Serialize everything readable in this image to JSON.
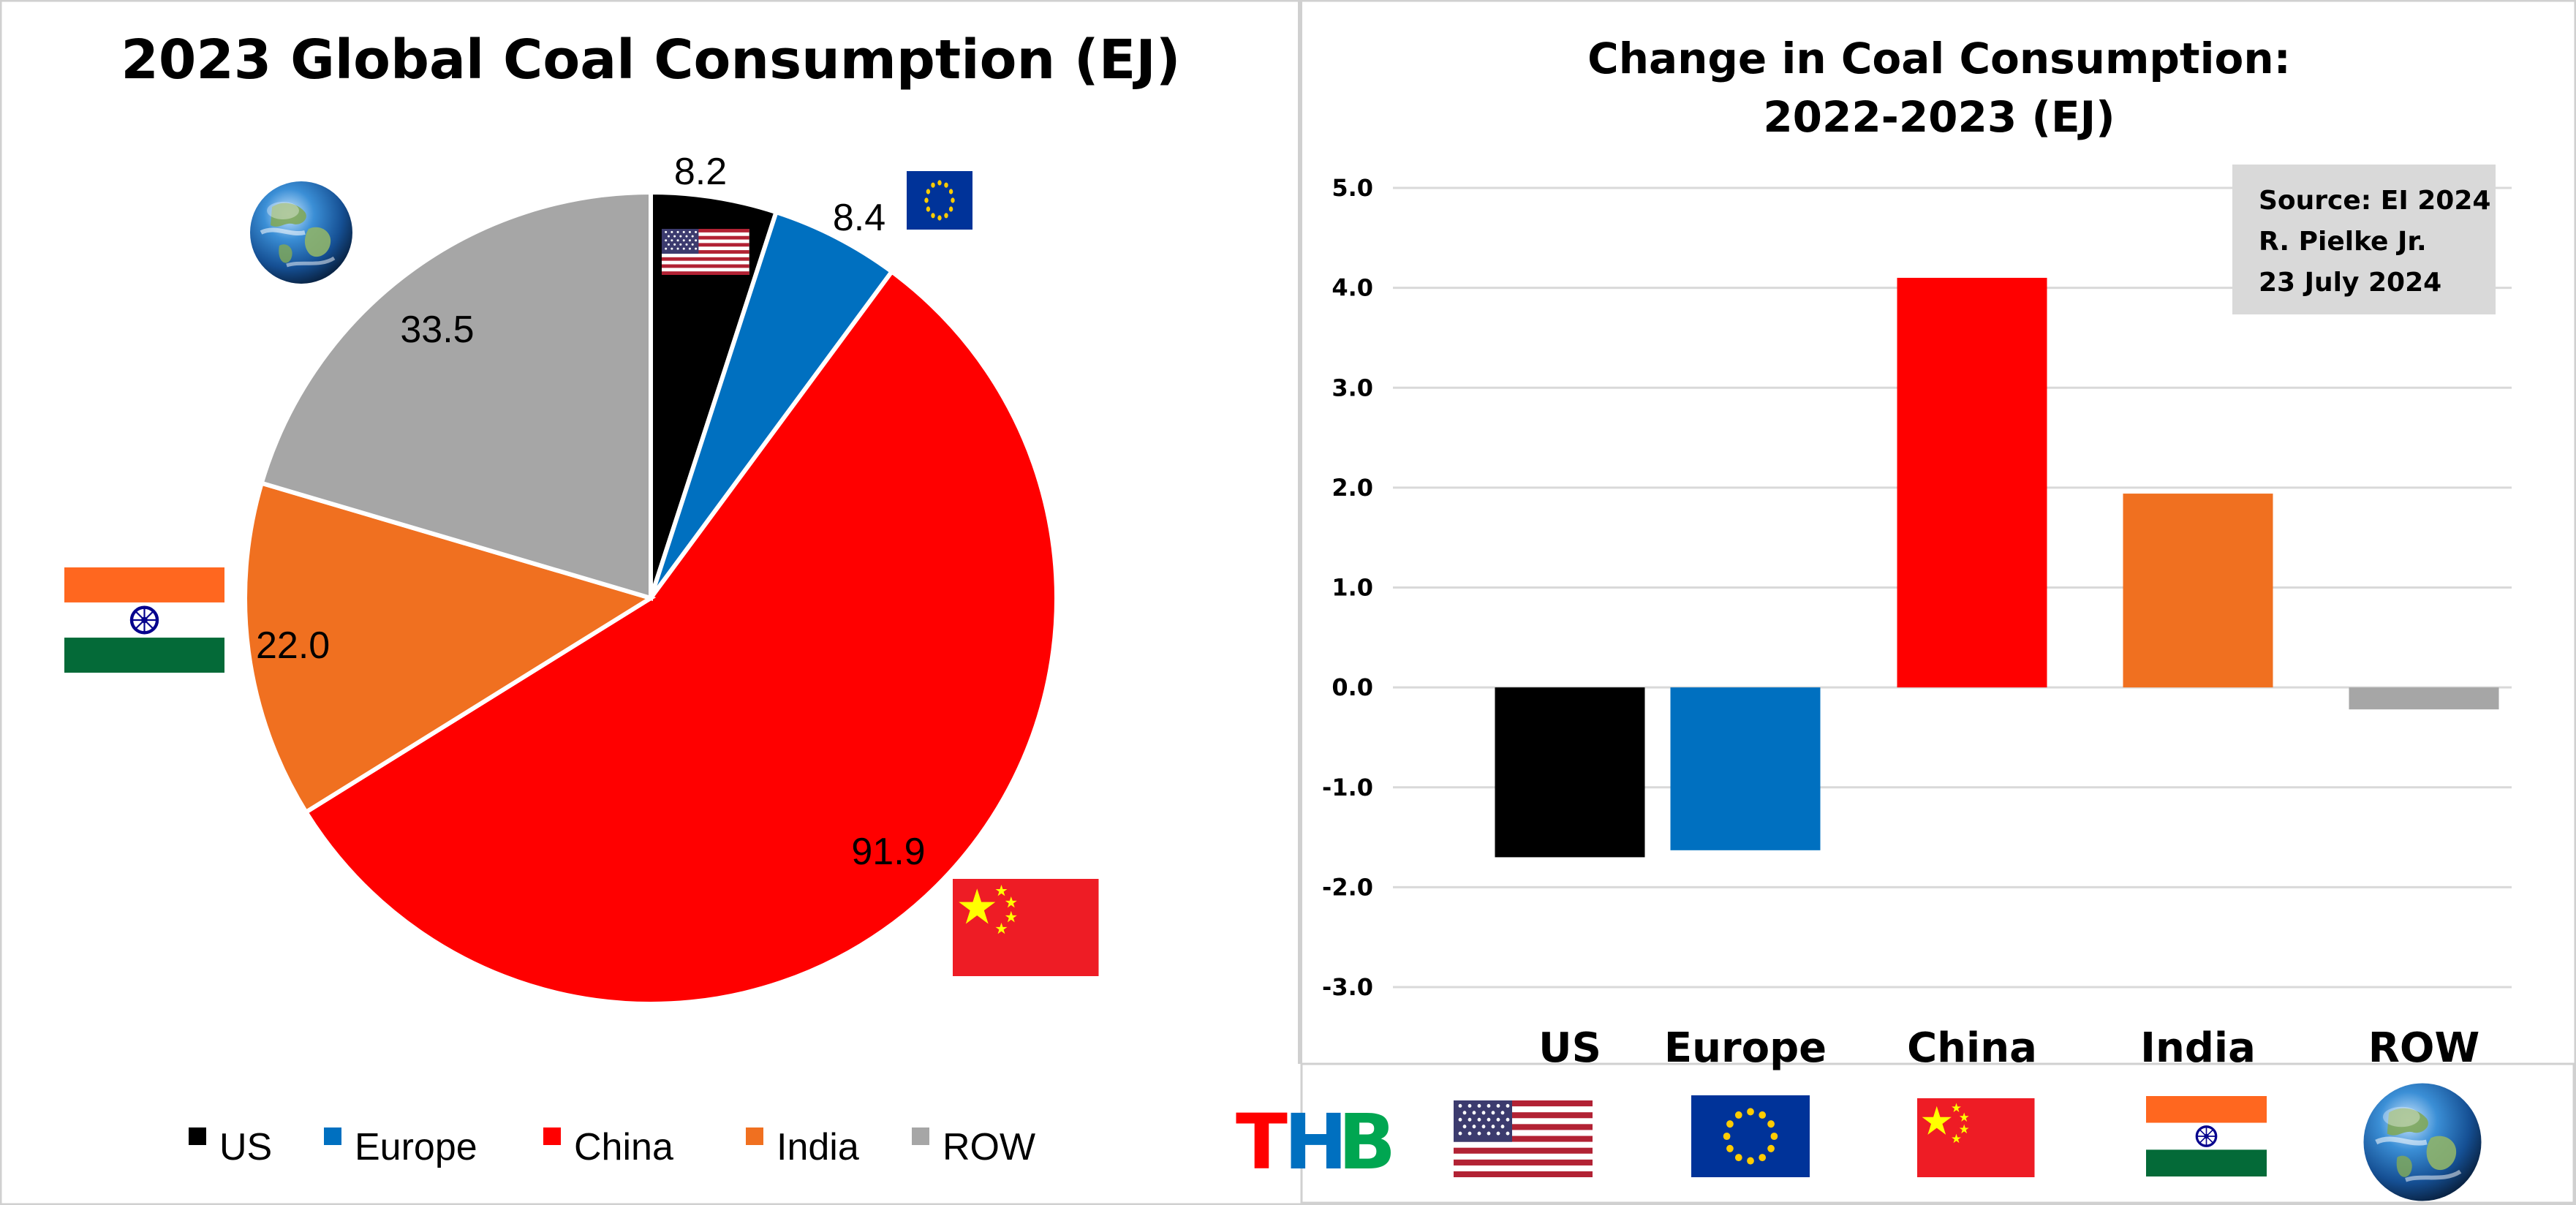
{
  "chart_data": [
    {
      "type": "pie",
      "title": "2023 Global Coal Consumption (EJ)",
      "categories": [
        "US",
        "Europe",
        "China",
        "India",
        "ROW"
      ],
      "values": [
        8.2,
        8.4,
        91.9,
        22.0,
        33.5
      ],
      "labels": [
        "8.2",
        "8.4",
        "91.9",
        "22.0",
        "33.5"
      ],
      "colors": [
        "#000000",
        "#0070c0",
        "#ff0000",
        "#f07020",
        "#a6a6a6"
      ],
      "legend": [
        "US",
        "Europe",
        "China",
        "India",
        "ROW"
      ],
      "legend_position": "bottom"
    },
    {
      "type": "bar",
      "title_line1": "Change in Coal Consumption:",
      "title_line2": "2022-2023 (EJ)",
      "categories": [
        "US",
        "Europe",
        "China",
        "India",
        "ROW"
      ],
      "values": [
        -1.7,
        -1.63,
        4.1,
        1.94,
        -0.22
      ],
      "colors": [
        "#000000",
        "#0070c0",
        "#ff0000",
        "#f07020",
        "#a6a6a6"
      ],
      "ylim": [
        -3.0,
        5.0
      ],
      "yticks": [
        "5.0",
        "4.0",
        "3.0",
        "2.0",
        "1.0",
        "0.0",
        "-1.0",
        "-2.0",
        "-3.0"
      ],
      "grid": true,
      "annotation": [
        "Source: EI 2024",
        "R. Pielke Jr.",
        "23 July 2024"
      ]
    }
  ],
  "branding": {
    "logo": [
      "T",
      "H",
      "B"
    ],
    "logo_colors": [
      "#ff0000",
      "#0070c0",
      "#00a651"
    ]
  },
  "icons": {
    "us_flag": "us-flag-icon",
    "eu_flag": "eu-flag-icon",
    "china_flag": "china-flag-icon",
    "india_flag": "india-flag-icon",
    "globe": "globe-icon"
  }
}
